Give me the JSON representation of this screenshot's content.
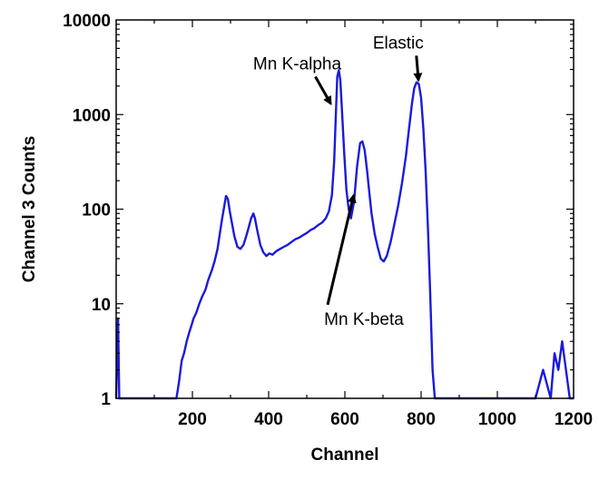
{
  "chart_data": {
    "type": "line",
    "title": "",
    "xlabel": "Channel",
    "ylabel": "Channel 3 Counts",
    "xlim": [
      0,
      1200
    ],
    "ylim": [
      1,
      10000
    ],
    "yscale": "log",
    "grid": false,
    "x_ticks": [
      200,
      400,
      600,
      800,
      1000,
      1200
    ],
    "x_tick_labels": [
      "200",
      "400",
      "600",
      "800",
      "1000",
      "1200"
    ],
    "y_ticks": [
      1,
      10,
      100,
      1000,
      10000
    ],
    "y_tick_labels": [
      "1",
      "10",
      "100",
      "1000",
      "10000"
    ],
    "series": [
      {
        "color": "#1a1adc",
        "x": [
          0,
          5,
          8,
          12,
          20,
          40,
          80,
          140,
          150,
          158,
          165,
          172,
          178,
          185,
          192,
          198,
          203,
          210,
          218,
          226,
          234,
          242,
          250,
          258,
          266,
          272,
          278,
          284,
          288,
          293,
          298,
          304,
          310,
          318,
          326,
          334,
          340,
          348,
          354,
          360,
          364,
          370,
          378,
          386,
          394,
          402,
          410,
          420,
          430,
          440,
          450,
          460,
          470,
          480,
          490,
          500,
          510,
          520,
          530,
          540,
          550,
          558,
          566,
          572,
          576,
          580,
          584,
          588,
          592,
          598,
          604,
          610,
          616,
          624,
          632,
          640,
          646,
          652,
          658,
          664,
          670,
          678,
          686,
          694,
          702,
          710,
          720,
          730,
          740,
          750,
          760,
          768,
          776,
          782,
          788,
          794,
          800,
          806,
          812,
          818,
          824,
          830,
          836,
          842,
          850,
          870,
          900,
          930,
          960,
          990,
          1020,
          1050,
          1080,
          1100,
          1120,
          1140,
          1150,
          1160,
          1170,
          1180,
          1190,
          1200
        ],
        "y": [
          1,
          7,
          1,
          1,
          1,
          1,
          1,
          1,
          1,
          1,
          1.5,
          2.5,
          3,
          4,
          5,
          6,
          7,
          8,
          10,
          12,
          14,
          18,
          22,
          28,
          38,
          55,
          80,
          110,
          138,
          128,
          95,
          70,
          52,
          40,
          38,
          42,
          50,
          65,
          80,
          90,
          80,
          60,
          42,
          35,
          32,
          34,
          33,
          36,
          38,
          40,
          42,
          45,
          48,
          50,
          53,
          56,
          60,
          63,
          68,
          72,
          80,
          95,
          140,
          320,
          900,
          2500,
          2950,
          2300,
          1200,
          400,
          160,
          100,
          80,
          120,
          280,
          500,
          520,
          420,
          260,
          150,
          90,
          55,
          40,
          30,
          28,
          32,
          45,
          70,
          110,
          190,
          360,
          700,
          1300,
          1900,
          2200,
          2100,
          1500,
          700,
          250,
          60,
          12,
          2,
          1,
          1,
          1,
          1,
          1,
          1,
          1,
          1,
          1,
          1,
          1,
          1,
          2,
          1,
          3,
          2,
          4,
          2,
          1,
          1
        ]
      }
    ],
    "annotations": [
      {
        "text": "Elastic",
        "x": 740,
        "y": 5000,
        "arrow_to": [
          793,
          2300
        ]
      },
      {
        "text": "Mn K-alpha",
        "x": 475,
        "y": 3000,
        "arrow_to": [
          563,
          1300
        ]
      },
      {
        "text": "Mn K-beta",
        "x": 650,
        "y": 6,
        "arrow_to": [
          623,
          140
        ]
      }
    ]
  }
}
